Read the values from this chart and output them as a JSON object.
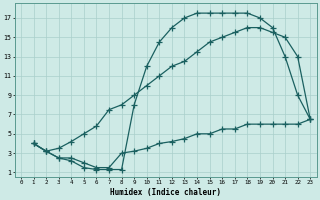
{
  "xlabel": "Humidex (Indice chaleur)",
  "bg_color": "#ceeae6",
  "grid_color": "#aacfcb",
  "line_color": "#1a6060",
  "xlim": [
    -0.5,
    23.5
  ],
  "ylim": [
    0.5,
    18.5
  ],
  "xticks": [
    0,
    1,
    2,
    3,
    4,
    5,
    6,
    7,
    8,
    9,
    10,
    11,
    12,
    13,
    14,
    15,
    16,
    17,
    18,
    19,
    20,
    21,
    22,
    23
  ],
  "yticks": [
    1,
    3,
    5,
    7,
    9,
    11,
    13,
    15,
    17
  ],
  "line1_x": [
    1,
    2,
    3,
    4,
    5,
    6,
    7,
    8,
    9,
    10,
    11,
    12,
    13,
    14,
    15,
    16,
    17,
    18,
    19,
    20,
    21,
    22,
    23
  ],
  "line1_y": [
    4,
    3.2,
    2.5,
    2.2,
    1.5,
    1.3,
    1.3,
    1.3,
    8.0,
    12.0,
    14.5,
    16.0,
    17.0,
    17.5,
    17.5,
    17.5,
    17.5,
    17.5,
    17.0,
    16.0,
    13.0,
    9.0,
    6.5
  ],
  "line2_x": [
    1,
    2,
    3,
    4,
    5,
    6,
    7,
    8,
    9,
    10,
    11,
    12,
    13,
    14,
    15,
    16,
    17,
    18,
    19,
    20,
    21,
    22,
    23
  ],
  "line2_y": [
    4,
    3.2,
    3.5,
    4.2,
    5.0,
    5.8,
    7.5,
    8.0,
    9.0,
    10.0,
    11.0,
    12.0,
    12.5,
    13.5,
    14.5,
    15.0,
    15.5,
    16.0,
    16.0,
    15.5,
    15.0,
    13.0,
    6.5
  ],
  "line3_x": [
    1,
    2,
    3,
    4,
    5,
    6,
    7,
    8,
    9,
    10,
    11,
    12,
    13,
    14,
    15,
    16,
    17,
    18,
    19,
    20,
    21,
    22,
    23
  ],
  "line3_y": [
    4,
    3.2,
    2.5,
    2.5,
    2.0,
    1.5,
    1.5,
    3.0,
    3.2,
    3.5,
    4.0,
    4.2,
    4.5,
    5.0,
    5.0,
    5.5,
    5.5,
    6.0,
    6.0,
    6.0,
    6.0,
    6.0,
    6.5
  ]
}
